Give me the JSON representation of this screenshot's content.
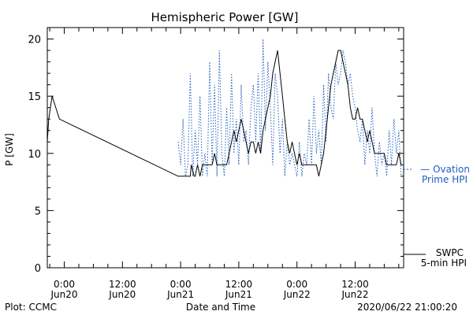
{
  "chart_data": {
    "type": "line",
    "title": "Hemispheric Power [GW]",
    "xlabel": "Date and Time",
    "ylabel": "P [GW]",
    "ylim": [
      0,
      21
    ],
    "xlim": [
      -3.5,
      70
    ],
    "x_units": "hours since 2020-06-20 00:00",
    "yticks": [
      0,
      5,
      10,
      15,
      20
    ],
    "xticks": [
      {
        "x": 0,
        "time": "0:00",
        "date": "Jun20"
      },
      {
        "x": 12,
        "time": "12:00",
        "date": "Jun20"
      },
      {
        "x": 24,
        "time": "0:00",
        "date": "Jun21"
      },
      {
        "x": 36,
        "time": "12:00",
        "date": "Jun21"
      },
      {
        "x": 48,
        "time": "0:00",
        "date": "Jun22"
      },
      {
        "x": 60,
        "time": "12:00",
        "date": "Jun22"
      }
    ],
    "legend_position": "right",
    "series": [
      {
        "name": "SWPC 5-min HPI",
        "color": "#000000",
        "style": "solid",
        "x": [
          -3.5,
          -3.2,
          -2.5,
          -1,
          23.5,
          24,
          24.5,
          24.8,
          25.2,
          26,
          26.2,
          26.8,
          27,
          27.5,
          28,
          28.5,
          29.5,
          30,
          30.5,
          31,
          31.5,
          32,
          33.5,
          34,
          34.5,
          35,
          35.5,
          36,
          36.5,
          37,
          37.5,
          38,
          38.5,
          39,
          39.5,
          40,
          40.5,
          41,
          41.5,
          42,
          42.5,
          43,
          43.5,
          44,
          44.5,
          45,
          45.5,
          46,
          46.5,
          47,
          47.5,
          48,
          48.5,
          49,
          49.5,
          50,
          50.5,
          51,
          51.5,
          52,
          52.5,
          53,
          53.5,
          54,
          54.5,
          55,
          55.5,
          56,
          56.5,
          57,
          57.5,
          58,
          58.5,
          59,
          59.5,
          60,
          60.5,
          61,
          61.5,
          62,
          62.5,
          63,
          63.5,
          64,
          64.5,
          65,
          65.5,
          66,
          66.5,
          67,
          67.5,
          68,
          68.5,
          69,
          69.5
        ],
        "y": [
          11,
          13,
          15,
          13,
          8,
          8,
          8,
          8,
          8,
          8,
          9,
          8,
          8,
          9,
          8,
          9,
          9,
          9,
          9,
          10,
          9,
          9,
          9,
          10,
          11,
          12,
          11,
          12,
          13,
          12,
          11,
          10,
          11,
          11,
          10,
          11,
          10,
          12,
          13,
          14,
          15,
          17,
          18,
          19,
          17,
          15,
          13,
          11,
          10,
          11,
          10,
          9,
          10,
          9,
          9,
          9,
          9,
          9,
          9,
          9,
          8,
          9,
          10,
          12,
          14,
          16,
          17,
          18,
          19,
          19,
          18,
          17,
          16,
          14,
          13,
          13,
          14,
          13,
          13,
          12,
          11,
          12,
          11,
          10,
          10,
          10,
          10,
          10,
          9,
          9,
          9,
          9,
          9,
          10,
          9
        ]
      },
      {
        "name": "Ovation Prime HPI",
        "color": "#1f5fbf",
        "style": "dotted",
        "x": [
          23.5,
          24,
          24.5,
          25,
          25.5,
          26,
          26.5,
          27,
          27.5,
          28,
          28.5,
          29,
          29.5,
          30,
          30.5,
          31,
          31.5,
          32,
          32.5,
          33,
          33.5,
          34,
          34.5,
          35,
          35.5,
          36,
          36.5,
          37,
          37.5,
          38,
          38.5,
          39,
          39.5,
          40,
          40.5,
          41,
          41.5,
          42,
          42.5,
          43,
          43.5,
          44,
          44.5,
          45,
          45.5,
          46,
          46.5,
          47,
          47.5,
          48,
          48.5,
          49,
          49.5,
          50,
          50.5,
          51,
          51.5,
          52,
          52.5,
          53,
          53.5,
          54,
          54.5,
          55,
          55.5,
          56,
          56.5,
          57,
          57.5,
          58,
          58.5,
          59,
          59.5,
          60,
          60.5,
          61,
          61.5,
          62,
          62.5,
          63,
          63.5,
          64,
          64.5,
          65,
          65.5,
          66,
          66.5,
          67,
          67.5,
          68,
          68.5,
          69,
          69.5
        ],
        "y": [
          11,
          9,
          13,
          8,
          9,
          17,
          8,
          12,
          9,
          15,
          8,
          10,
          8,
          18,
          9,
          16,
          8,
          19,
          10,
          8,
          14,
          9,
          17,
          10,
          13,
          9,
          16,
          11,
          12,
          9,
          14,
          16,
          11,
          17,
          10,
          20,
          12,
          18,
          14,
          9,
          17,
          15,
          10,
          13,
          8,
          11,
          9,
          10,
          9,
          8,
          11,
          8,
          10,
          9,
          13,
          9,
          15,
          10,
          12,
          9,
          16,
          11,
          17,
          14,
          13,
          18,
          16,
          17,
          19,
          18,
          16,
          17,
          15,
          14,
          12,
          11,
          13,
          9,
          12,
          10,
          14,
          10,
          8,
          11,
          9,
          10,
          8,
          12,
          9,
          13,
          10,
          12,
          8
        ]
      }
    ]
  },
  "labels": {
    "legend_ovation_line1": "— Ovation",
    "legend_ovation_line2": "Prime HPI",
    "legend_swpc_line1": "SWPC",
    "legend_swpc_line2": "5-min HPI",
    "footer_left": "Plot: CCMC",
    "footer_right": "2020/06/22 21:00:20"
  }
}
